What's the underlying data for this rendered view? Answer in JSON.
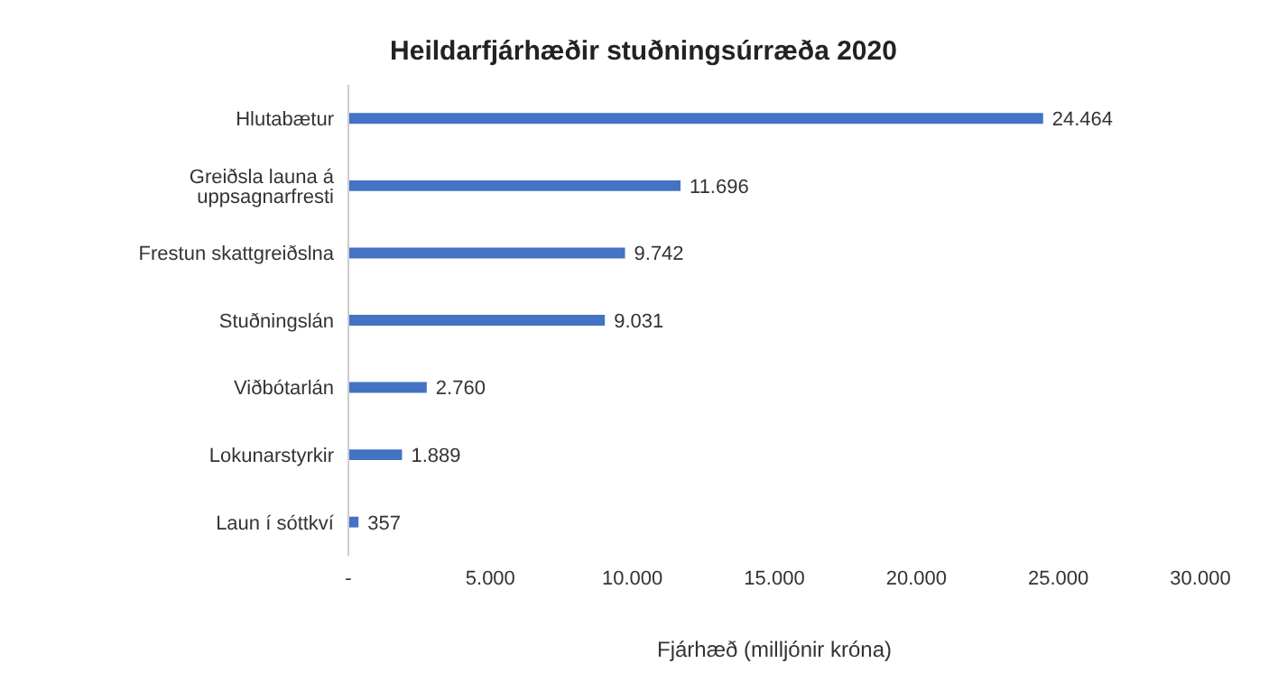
{
  "chart_data": {
    "type": "bar",
    "orientation": "horizontal",
    "title": "Heildarfjárhæðir stuðningsúrræða 2020",
    "xlabel": "Fjárhæð (milljónir króna)",
    "categories": [
      "Hlutabætur",
      "Greiðsla launa á uppsagnarfresti",
      "Frestun skattgreiðslna",
      "Stuðningslán",
      "Viðbótarlán",
      "Lokunarstyrkir",
      "Laun í sóttkví"
    ],
    "values": [
      24464,
      11696,
      9742,
      9031,
      2760,
      1889,
      357
    ],
    "value_labels": [
      "24.464",
      "11.696",
      "9.742",
      "9.031",
      "2.760",
      "1.889",
      "357"
    ],
    "color": "#4472c4",
    "xlim": [
      0,
      30000
    ],
    "xticks": [
      {
        "value": 0,
        "label": "-"
      },
      {
        "value": 5000,
        "label": "5.000"
      },
      {
        "value": 10000,
        "label": "10.000"
      },
      {
        "value": 15000,
        "label": "15.000"
      },
      {
        "value": 20000,
        "label": "20.000"
      },
      {
        "value": 25000,
        "label": "25.000"
      },
      {
        "value": 30000,
        "label": "30.000"
      }
    ],
    "grid": false,
    "legend": false
  }
}
